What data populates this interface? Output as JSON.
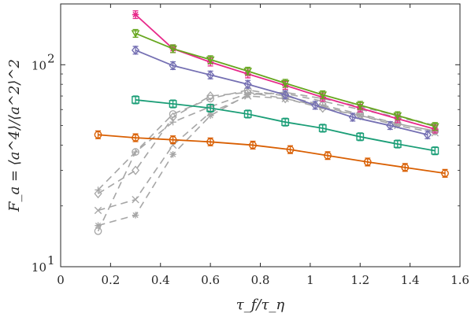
{
  "chart_data": {
    "type": "line",
    "title": "",
    "xlabel": "τ_f/τ_η",
    "ylabel": "F_a = ⟨a^4⟩/⟨a^2⟩^2",
    "xlim": [
      0,
      1.6
    ],
    "ylim": [
      10,
      200
    ],
    "y_scale": "log",
    "grid": false,
    "legend": "none",
    "x_ticks": [
      "0",
      "0.2",
      "0.4",
      "0.6",
      "0.8",
      "1",
      "1.2",
      "1.4",
      "1.6"
    ],
    "y_ticks": [
      {
        "value": 10,
        "label": "10",
        "exp": "1"
      },
      {
        "value": 100,
        "label": "10",
        "exp": "2"
      }
    ],
    "series": [
      {
        "color": "#e7298a",
        "marker": "asterisk",
        "style": "solid",
        "errorbars": true,
        "x": [
          0.3,
          0.45,
          0.6,
          0.75,
          0.9,
          1.05,
          1.2,
          1.35,
          1.5
        ],
        "y": [
          177,
          120,
          103,
          90,
          79,
          69,
          61,
          54,
          48
        ]
      },
      {
        "color": "#66a61e",
        "marker": "triangle-down",
        "style": "solid",
        "errorbars": true,
        "x": [
          0.3,
          0.45,
          0.6,
          0.75,
          0.9,
          1.05,
          1.2,
          1.35,
          1.5
        ],
        "y": [
          143,
          120,
          106,
          93,
          81,
          71,
          63,
          56,
          49.5
        ]
      },
      {
        "color": "#7570b3",
        "marker": "diamond",
        "style": "solid",
        "errorbars": true,
        "x": [
          0.3,
          0.45,
          0.6,
          0.75,
          0.9,
          1.02,
          1.17,
          1.32,
          1.47
        ],
        "y": [
          118,
          99,
          89,
          80,
          71,
          63,
          55,
          50,
          45
        ]
      },
      {
        "color": "#1b9e77",
        "marker": "square",
        "style": "solid",
        "errorbars": true,
        "x": [
          0.3,
          0.45,
          0.6,
          0.75,
          0.9,
          1.05,
          1.2,
          1.35,
          1.5
        ],
        "y": [
          67,
          64,
          61,
          57,
          52,
          48.5,
          44,
          40.5,
          37.5
        ]
      },
      {
        "color": "#d95f02",
        "marker": "circle",
        "style": "solid",
        "errorbars": true,
        "x": [
          0.15,
          0.3,
          0.45,
          0.6,
          0.77,
          0.92,
          1.07,
          1.23,
          1.38,
          1.54
        ],
        "y": [
          45,
          43.5,
          42.5,
          41.5,
          40,
          38,
          35.5,
          33,
          31,
          29
        ]
      },
      {
        "color": "#a6a6a6",
        "marker": "plus",
        "style": "dashed",
        "errorbars": false,
        "x": [
          0.15,
          0.3,
          0.45,
          0.6,
          0.75,
          0.9,
          1.05,
          1.2,
          1.35,
          1.5
        ],
        "y": [
          24,
          37,
          52,
          62,
          72,
          72,
          66,
          60,
          55,
          50
        ]
      },
      {
        "color": "#a6a6a6",
        "marker": "diamond",
        "style": "dashed",
        "errorbars": false,
        "x": [
          0.15,
          0.3,
          0.45,
          0.6,
          0.75,
          0.9,
          1.05,
          1.2,
          1.35,
          1.5
        ],
        "y": [
          23,
          30,
          55,
          70,
          73,
          68,
          61,
          56,
          51,
          47
        ]
      },
      {
        "color": "#a6a6a6",
        "marker": "circle",
        "style": "dashed",
        "errorbars": false,
        "x": [
          0.15,
          0.3,
          0.45,
          0.6,
          0.75,
          0.9,
          1.05,
          1.2,
          1.35,
          1.5
        ],
        "y": [
          15,
          37,
          57,
          68,
          75,
          70,
          63,
          57,
          51,
          47
        ]
      },
      {
        "color": "#a6a6a6",
        "marker": "cross",
        "style": "dashed",
        "errorbars": false,
        "x": [
          0.15,
          0.3,
          0.45,
          0.6,
          0.75,
          0.9,
          1.05,
          1.2,
          1.35,
          1.5
        ],
        "y": [
          19,
          21.5,
          40,
          58,
          70,
          68,
          62,
          56,
          50,
          46
        ]
      },
      {
        "color": "#a6a6a6",
        "marker": "asterisk",
        "style": "dashed",
        "errorbars": false,
        "x": [
          0.15,
          0.3,
          0.45,
          0.6,
          0.75,
          0.9,
          1.05,
          1.2,
          1.35,
          1.5
        ],
        "y": [
          16,
          18,
          36,
          56,
          71,
          73,
          68,
          62,
          56,
          50
        ]
      }
    ]
  }
}
